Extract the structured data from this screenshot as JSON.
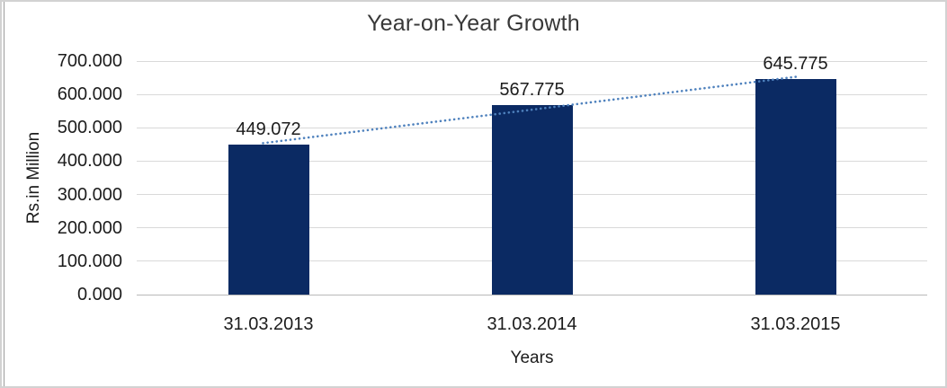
{
  "chart_data": {
    "type": "bar",
    "title": "Year-on-Year Growth",
    "xlabel": "Years",
    "ylabel": "Rs.in Million",
    "categories": [
      "31.03.2013",
      "31.03.2014",
      "31.03.2015"
    ],
    "values": [
      449.072,
      567.775,
      645.775
    ],
    "value_labels": [
      "449.072",
      "567.775",
      "645.775"
    ],
    "y_ticks": [
      "0.000",
      "100.000",
      "200.000",
      "300.000",
      "400.000",
      "500.000",
      "600.000",
      "700.000"
    ],
    "ylim": [
      0,
      700
    ],
    "grid": true,
    "legend_position": "none",
    "bar_color": "#0B2A63",
    "gridline_color": "#D9D9D9",
    "axis_line_color": "#B8B8B8",
    "trendline": {
      "type": "linear",
      "style": "dotted",
      "color": "#4E81BD"
    }
  }
}
